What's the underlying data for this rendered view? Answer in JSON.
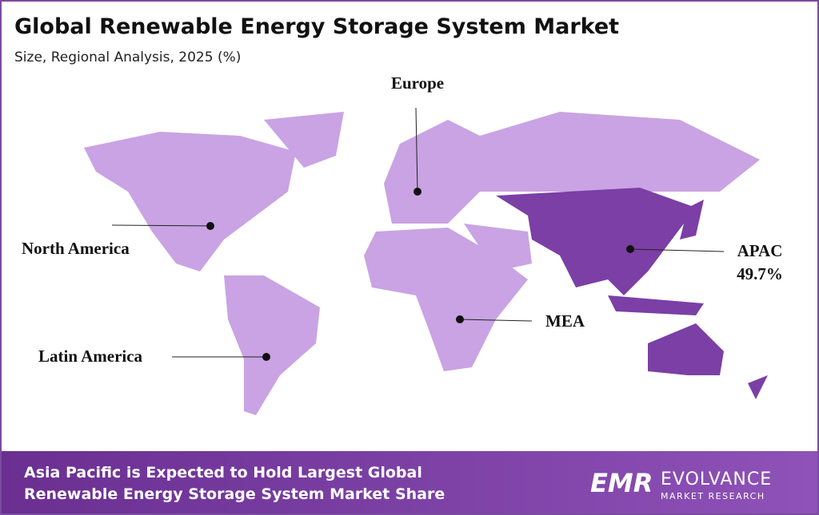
{
  "header": {
    "title": "Global Renewable Energy Storage System Market",
    "subtitle": "Size, Regional Analysis, 2025 (%)"
  },
  "regions": [
    {
      "label": "North America"
    },
    {
      "label": "Europe"
    },
    {
      "label": "Latin America"
    },
    {
      "label": "MEA"
    },
    {
      "label": "APAC",
      "share": "49.7%"
    }
  ],
  "footer": {
    "headline": [
      "Asia Pacific is Expected to Hold Largest Global",
      "Renewable Energy Storage System Market Share"
    ],
    "logo": "EMR",
    "brand": "EVOLVANCE",
    "brand_sub": "MARKET RESEARCH"
  }
}
